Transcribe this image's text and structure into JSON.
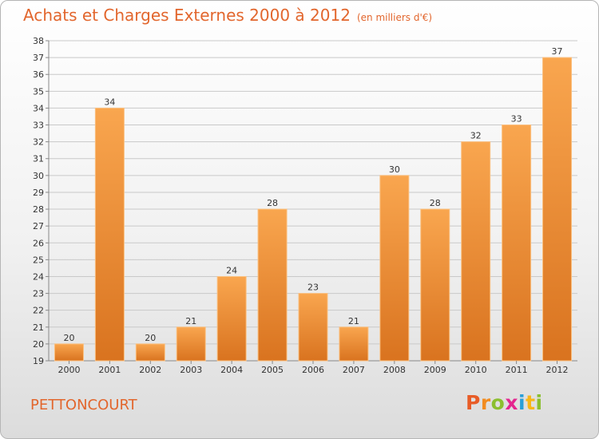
{
  "header": {
    "title": "Achats et Charges Externes 2000 à 2012",
    "subtitle": "(en milliers d'€)"
  },
  "footer": {
    "commune": "PETTONCOURT",
    "logo": [
      "P",
      "r",
      "o",
      "x",
      "i",
      "t",
      "i"
    ],
    "logo_colors": [
      "#e85c27",
      "#f28c20",
      "#8bbf2f",
      "#e4268f",
      "#2a9fd8",
      "#f7b718",
      "#8bbf2f"
    ]
  },
  "chart_data": {
    "type": "bar",
    "title": "Achats et Charges Externes 2000 à 2012",
    "subtitle": "(en milliers d'€)",
    "categories": [
      "2000",
      "2001",
      "2002",
      "2003",
      "2004",
      "2005",
      "2006",
      "2007",
      "2008",
      "2009",
      "2010",
      "2011",
      "2012"
    ],
    "values": [
      20,
      34,
      20,
      21,
      24,
      28,
      23,
      21,
      30,
      28,
      32,
      33,
      37
    ],
    "ylim": [
      19,
      38
    ],
    "yticks": [
      19,
      20,
      21,
      22,
      23,
      24,
      25,
      26,
      27,
      28,
      29,
      30,
      31,
      32,
      33,
      34,
      35,
      36,
      37,
      38
    ],
    "grid": true,
    "bar_color_top": "#f9a64f",
    "bar_color_bottom": "#d9731f"
  }
}
